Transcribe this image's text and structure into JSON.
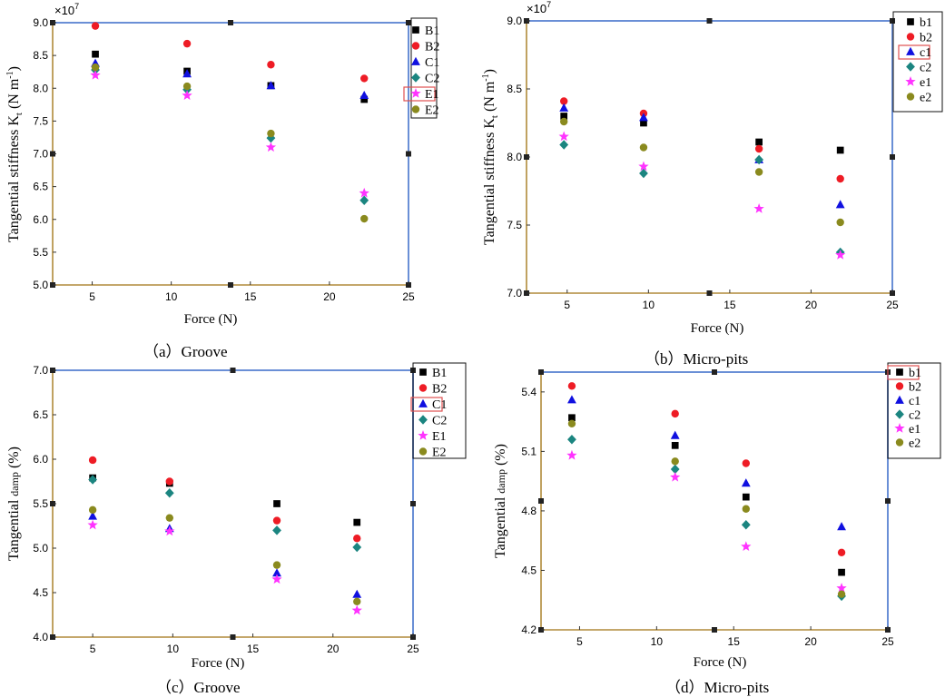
{
  "figure": {
    "captions": [
      "（a）Groove",
      "（b）Micro-pits",
      "（c）Groove",
      "（d）Micro-pits"
    ]
  },
  "marker_styles": [
    {
      "shape": "square",
      "color": "#000000"
    },
    {
      "shape": "circle",
      "color": "#ee1c25"
    },
    {
      "shape": "triangle",
      "color": "#1010e0"
    },
    {
      "shape": "diamond",
      "color": "#1b8580"
    },
    {
      "shape": "star",
      "color": "#ff33ff"
    },
    {
      "shape": "circle",
      "color": "#8a8a1e"
    }
  ],
  "colors": {
    "frame_top_right": "#6a8fd6",
    "frame_bottom_left": "#b08a3a",
    "legend_highlight": "#e05050"
  },
  "chart_data": [
    {
      "type": "scatter",
      "caption": "（a）Groove",
      "xlabel": "Force (N)",
      "ylabel_main": "Tangential stiffness K",
      "ylabel_sub": "t",
      "ylabel_unit": " (N m",
      "ylabel_sup": "-1",
      "ylabel_end": ")",
      "exponent_label": "×10",
      "exponent_power": "7",
      "xlim": [
        2.5,
        25
      ],
      "ylim": [
        5.0,
        9.0
      ],
      "xticks": [
        5,
        10,
        15,
        20,
        25
      ],
      "yticks": [
        5.0,
        5.5,
        6.0,
        6.5,
        7.0,
        7.5,
        8.0,
        8.5,
        9.0
      ],
      "ytick_labels": [
        "5.0",
        "5.5",
        "6.0",
        "6.5",
        "7.0",
        "7.5",
        "8.0",
        "8.5",
        "9.0"
      ],
      "legend_position": "top-right",
      "legend_highlight_index": 4,
      "series": [
        {
          "name": "B1",
          "x": [
            5.2,
            11.0,
            16.3,
            22.2
          ],
          "y": [
            8.52,
            8.26,
            8.04,
            7.83
          ]
        },
        {
          "name": "B2",
          "x": [
            5.2,
            11.0,
            16.3,
            22.2
          ],
          "y": [
            8.95,
            8.68,
            8.36,
            8.15
          ]
        },
        {
          "name": "C1",
          "x": [
            5.2,
            11.0,
            16.3,
            22.2
          ],
          "y": [
            8.38,
            8.22,
            8.04,
            7.89
          ]
        },
        {
          "name": "C2",
          "x": [
            5.2,
            11.0,
            16.3,
            22.2
          ],
          "y": [
            8.28,
            7.98,
            7.24,
            6.29
          ]
        },
        {
          "name": "E1",
          "x": [
            5.2,
            11.0,
            16.3,
            22.2
          ],
          "y": [
            8.2,
            7.89,
            7.1,
            6.4
          ]
        },
        {
          "name": "E2",
          "x": [
            5.2,
            11.0,
            16.3,
            22.2
          ],
          "y": [
            8.32,
            8.03,
            7.31,
            6.01
          ]
        }
      ]
    },
    {
      "type": "scatter",
      "caption": "（b）Micro-pits",
      "xlabel": "Force (N)",
      "ylabel_main": "Tangential stiffness K",
      "ylabel_sub": "t",
      "ylabel_unit": " (N m",
      "ylabel_sup": "-1",
      "ylabel_end": ")",
      "exponent_label": "×10",
      "exponent_power": "7",
      "xlim": [
        2.5,
        25
      ],
      "ylim": [
        7.0,
        9.0
      ],
      "xticks": [
        5,
        10,
        15,
        20,
        25
      ],
      "yticks": [
        7.0,
        7.5,
        8.0,
        8.5,
        9.0
      ],
      "ytick_labels": [
        "7.0",
        "7.5",
        "8.0",
        "8.5",
        "9.0"
      ],
      "legend_position": "top-right",
      "legend_highlight_index": 2,
      "series": [
        {
          "name": "b1",
          "x": [
            4.8,
            9.7,
            16.8,
            21.8
          ],
          "y": [
            8.3,
            8.25,
            8.11,
            8.05
          ]
        },
        {
          "name": "b2",
          "x": [
            4.8,
            9.7,
            16.8,
            21.8
          ],
          "y": [
            8.41,
            8.32,
            8.06,
            7.84
          ]
        },
        {
          "name": "c1",
          "x": [
            4.8,
            9.7,
            16.8,
            21.8
          ],
          "y": [
            8.36,
            8.29,
            7.98,
            7.65
          ]
        },
        {
          "name": "c2",
          "x": [
            4.8,
            9.7,
            16.8,
            21.8
          ],
          "y": [
            8.09,
            7.88,
            7.98,
            7.3
          ]
        },
        {
          "name": "e1",
          "x": [
            4.8,
            9.7,
            16.8,
            21.8
          ],
          "y": [
            8.15,
            7.93,
            7.62,
            7.28
          ]
        },
        {
          "name": "e2",
          "x": [
            4.8,
            9.7,
            16.8,
            21.8
          ],
          "y": [
            8.26,
            8.07,
            7.89,
            7.52
          ]
        }
      ]
    },
    {
      "type": "scatter",
      "caption": "（c）Groove",
      "xlabel": "Force (N)",
      "ylabel_main": "Tangential ",
      "ylabel_small": "damp",
      "ylabel_end": " (%)",
      "xlim": [
        2.5,
        25
      ],
      "ylim": [
        4.0,
        7.0
      ],
      "xticks": [
        5,
        10,
        15,
        20,
        25
      ],
      "yticks": [
        4.0,
        4.5,
        5.0,
        5.5,
        6.0,
        6.5,
        7.0
      ],
      "ytick_labels": [
        "4.0",
        "4.5",
        "5.0",
        "5.5",
        "6.0",
        "6.5",
        "7.0"
      ],
      "legend_position": "top-right",
      "legend_highlight_index": 2,
      "series": [
        {
          "name": "B1",
          "x": [
            5.0,
            9.8,
            16.5,
            21.5
          ],
          "y": [
            5.79,
            5.73,
            5.5,
            5.29
          ]
        },
        {
          "name": "B2",
          "x": [
            5.0,
            9.8,
            16.5,
            21.5
          ],
          "y": [
            5.99,
            5.75,
            5.31,
            5.11
          ]
        },
        {
          "name": "C1",
          "x": [
            5.0,
            9.8,
            16.5,
            21.5
          ],
          "y": [
            5.36,
            5.22,
            4.72,
            4.48
          ]
        },
        {
          "name": "C2",
          "x": [
            5.0,
            9.8,
            16.5,
            21.5
          ],
          "y": [
            5.77,
            5.62,
            5.2,
            5.01
          ]
        },
        {
          "name": "E1",
          "x": [
            5.0,
            9.8,
            16.5,
            21.5
          ],
          "y": [
            5.26,
            5.19,
            4.65,
            4.3
          ]
        },
        {
          "name": "E2",
          "x": [
            5.0,
            9.8,
            16.5,
            21.5
          ],
          "y": [
            5.43,
            5.34,
            4.81,
            4.4
          ]
        }
      ]
    },
    {
      "type": "scatter",
      "caption": "（d）Micro-pits",
      "xlabel": "Force (N)",
      "ylabel_main": "Tangential ",
      "ylabel_small": "damp",
      "ylabel_end": " (%)",
      "xlim": [
        2.5,
        25
      ],
      "ylim": [
        4.2,
        5.5
      ],
      "xticks": [
        5,
        10,
        15,
        20,
        25
      ],
      "yticks": [
        4.2,
        4.5,
        4.8,
        5.1,
        5.4
      ],
      "ytick_labels": [
        "4.2",
        "4.5",
        "4.8",
        "5.1",
        "5.4"
      ],
      "legend_position": "top-right",
      "legend_highlight_index": 0,
      "series": [
        {
          "name": "b1",
          "x": [
            4.5,
            11.2,
            15.8,
            22.0
          ],
          "y": [
            5.27,
            5.13,
            4.87,
            4.49
          ]
        },
        {
          "name": "b2",
          "x": [
            4.5,
            11.2,
            15.8,
            22.0
          ],
          "y": [
            5.43,
            5.29,
            5.04,
            4.59
          ]
        },
        {
          "name": "c1",
          "x": [
            4.5,
            11.2,
            15.8,
            22.0
          ],
          "y": [
            5.36,
            5.18,
            4.94,
            4.72
          ]
        },
        {
          "name": "c2",
          "x": [
            4.5,
            11.2,
            15.8,
            22.0
          ],
          "y": [
            5.16,
            5.01,
            4.73,
            4.37
          ]
        },
        {
          "name": "e1",
          "x": [
            4.5,
            11.2,
            15.8,
            22.0
          ],
          "y": [
            5.08,
            4.97,
            4.62,
            4.41
          ]
        },
        {
          "name": "e2",
          "x": [
            4.5,
            11.2,
            15.8,
            22.0
          ],
          "y": [
            5.24,
            5.05,
            4.81,
            4.38
          ]
        }
      ]
    }
  ]
}
